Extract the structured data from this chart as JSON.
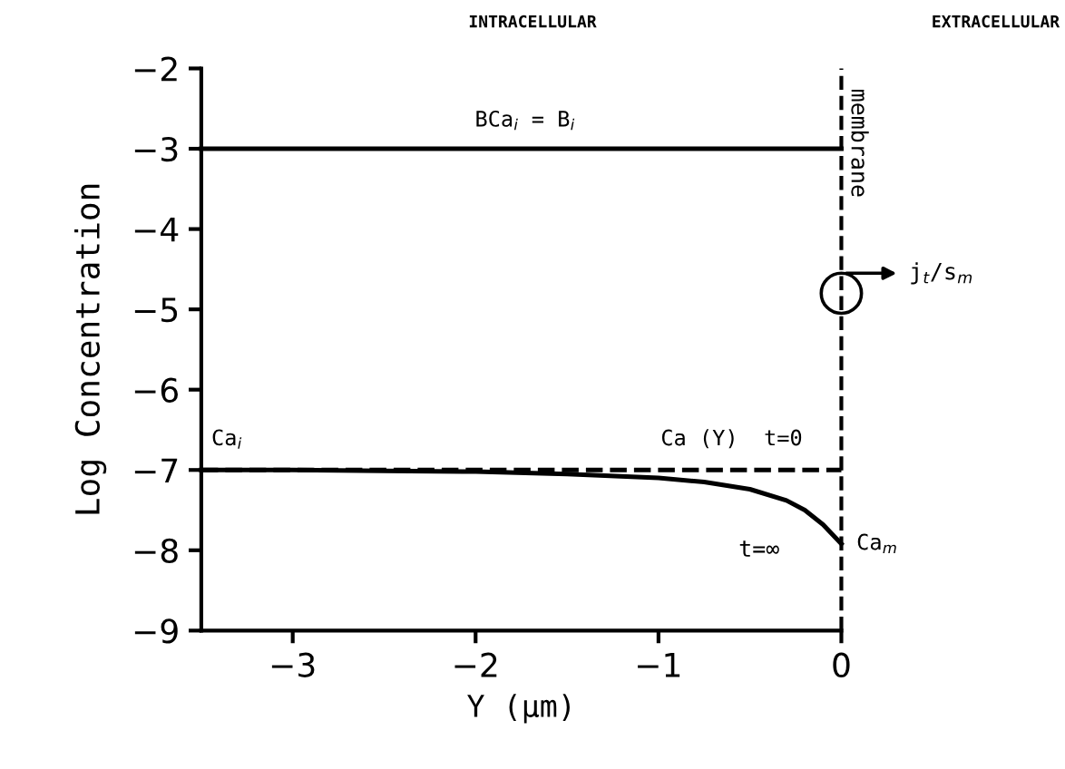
{
  "chart_data": {
    "type": "line",
    "xlabel": "Y (μm)",
    "ylabel": "Log Concentration",
    "xlim": [
      -3.5,
      0
    ],
    "ylim": [
      -9,
      -2
    ],
    "xticks": [
      -3,
      -2,
      -1,
      0
    ],
    "yticks": [
      -9,
      -8,
      -7,
      -6,
      -5,
      -4,
      -3,
      -2
    ],
    "grid": false,
    "marker": "none",
    "series": [
      {
        "color": "#000000",
        "line_style": "solid",
        "x": [
          -3.5,
          0
        ],
        "values": [
          -3,
          -3
        ]
      },
      {
        "color": "#000000",
        "line_style": "dashed",
        "x": [
          -3.5,
          0
        ],
        "values": [
          -7,
          -7
        ]
      },
      {
        "color": "#000000",
        "line_style": "solid",
        "x": [
          -3.5,
          -3,
          -2.5,
          -2,
          -1.5,
          -1,
          -0.75,
          -0.5,
          -0.3,
          -0.2,
          -0.1,
          0
        ],
        "values": [
          -7,
          -7,
          -7.01,
          -7.02,
          -7.05,
          -7.1,
          -7.15,
          -7.24,
          -7.38,
          -7.5,
          -7.68,
          -7.92
        ]
      }
    ],
    "ref_lines": [
      {
        "axis": "x",
        "value": 0,
        "label": "membrane",
        "line_style": "dashed",
        "color": "#000000"
      }
    ],
    "annotations": [
      {
        "text": "BCa$_{i}$ = B$_{i}$",
        "x": -1.73,
        "y": -3
      },
      {
        "text": "Ca$_{i}$",
        "x": -3.5,
        "y": -7
      },
      {
        "text": "Ca (Y)  t=0",
        "x": -0.6,
        "y": -7
      },
      "t=∞",
      {
        "text": "Ca$_{m}$",
        "x": 0,
        "y": -7.92
      },
      "j$_{t}$/s$_{m}$",
      "INTRACELLULAR",
      "EXTRACELLULAR"
    ]
  }
}
